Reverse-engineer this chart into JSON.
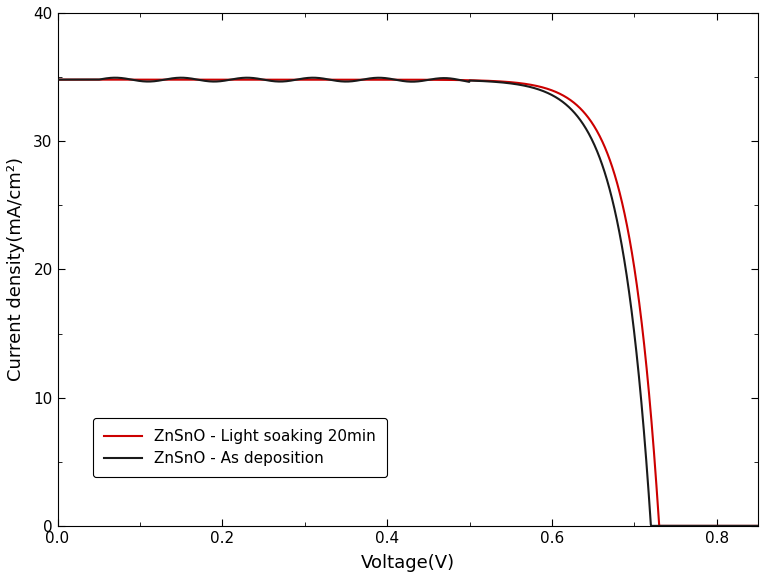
{
  "title": "",
  "xlabel": "Voltage(V)",
  "ylabel": "Current density(mA/cm²)",
  "xlim": [
    0.0,
    0.85
  ],
  "ylim": [
    0,
    40
  ],
  "xticks": [
    0.0,
    0.2,
    0.4,
    0.6,
    0.8
  ],
  "yticks": [
    0,
    10,
    20,
    30,
    40
  ],
  "line1_label": "ZnSnO - As deposition",
  "line1_color": "#1a1a1a",
  "line2_label": "ZnSnO - Light soaking 20min",
  "line2_color": "#cc0000",
  "Jsc": 34.8,
  "Voc1": 0.72,
  "Voc2": 0.73,
  "figsize": [
    7.65,
    5.79
  ],
  "dpi": 100
}
